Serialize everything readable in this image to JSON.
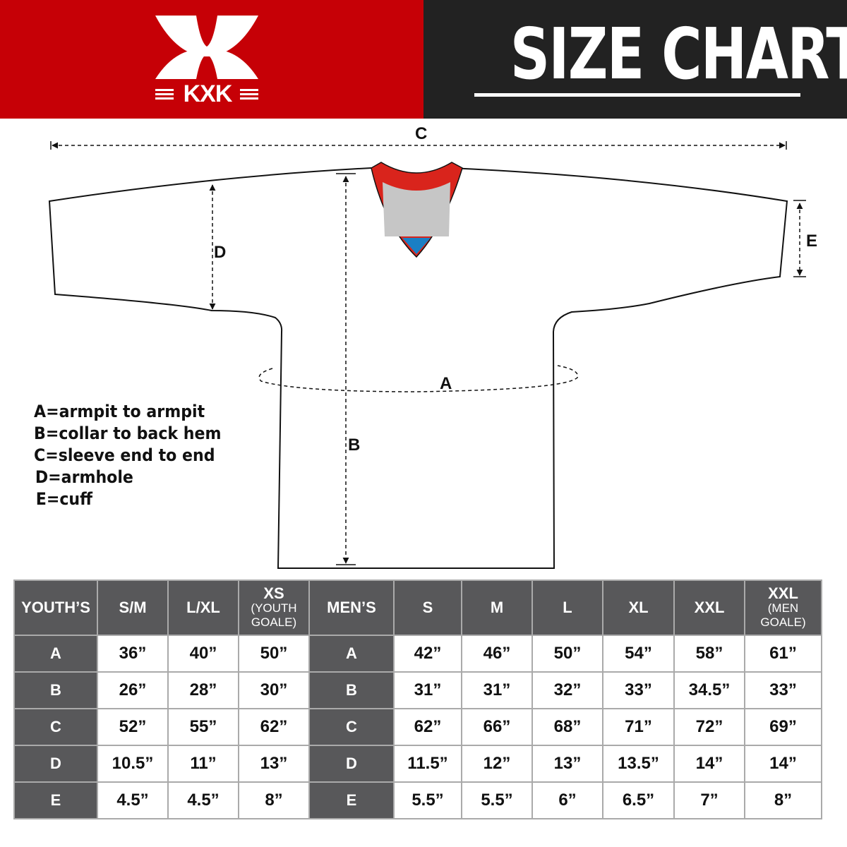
{
  "brand": {
    "logo_text": "KXK",
    "accent": "#c60006",
    "dark": "#222222"
  },
  "header": {
    "title": "SIZE CHART"
  },
  "diagram": {
    "labels": {
      "a": "A",
      "b": "B",
      "c": "C",
      "d": "D",
      "e": "E"
    }
  },
  "legend": [
    "A=armpit to armpit",
    "B=collar to back hem",
    "C=sleeve end to end",
    "D=armhole",
    "E=cuff"
  ],
  "table": {
    "headers": [
      {
        "main": "YOUTH’S"
      },
      {
        "main": "S/M"
      },
      {
        "main": "L/XL"
      },
      {
        "main": "XS",
        "sub": "(YOUTH GOALE)"
      },
      {
        "main": "MEN’S"
      },
      {
        "main": "S"
      },
      {
        "main": "M"
      },
      {
        "main": "L"
      },
      {
        "main": "XL"
      },
      {
        "main": "XXL"
      },
      {
        "main": "XXL",
        "sub": "(MEN GOALE)"
      }
    ],
    "rows": [
      [
        "A",
        "36”",
        "40”",
        "50”",
        "A",
        "42”",
        "46”",
        "50”",
        "54”",
        "58”",
        "61”"
      ],
      [
        "B",
        "26”",
        "28”",
        "30”",
        "B",
        "31”",
        "31”",
        "32”",
        "33”",
        "34.5”",
        "33”"
      ],
      [
        "C",
        "52”",
        "55”",
        "62”",
        "C",
        "62”",
        "66”",
        "68”",
        "71”",
        "72”",
        "69”"
      ],
      [
        "D",
        "10.5”",
        "11”",
        "13”",
        "D",
        "11.5”",
        "12”",
        "13”",
        "13.5”",
        "14”",
        "14”"
      ],
      [
        "E",
        "4.5”",
        "4.5”",
        "8”",
        "E",
        "5.5”",
        "5.5”",
        "6”",
        "6.5”",
        "7”",
        "8”"
      ]
    ]
  }
}
